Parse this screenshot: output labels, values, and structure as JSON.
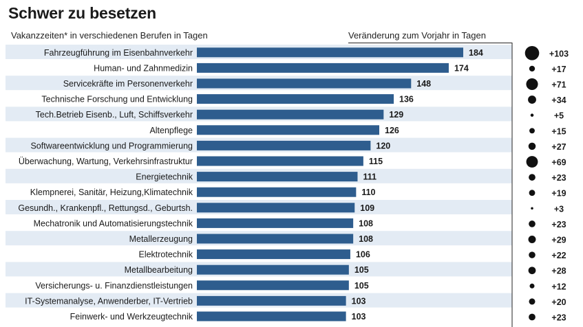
{
  "title": "Schwer zu besetzen",
  "subtitle": "Vakanzzeiten* in verschiedenen Berufen in Tagen",
  "change_header": "Veränderung zum Vorjahr in Tagen",
  "colors": {
    "bar": "#2e5d8e",
    "row_band": "#e3ebf4",
    "dot": "#111111",
    "text": "#1a1a1a"
  },
  "chart_data": {
    "type": "bar",
    "orientation": "horizontal",
    "categories": [
      "Fahrzeugführung im Eisenbahnverkehr",
      "Human- und Zahnmedizin",
      "Servicekräfte im Personenverkehr",
      "Technische Forschung und Entwicklung",
      "Tech.Betrieb Eisenb., Luft, Schiffsverkehr",
      "Altenpflege",
      "Softwareentwicklung und Programmierung",
      "Überwachung, Wartung, Verkehrsinfrastruktur",
      "Energietechnik",
      "Klempnerei, Sanitär,  Heizung,Klimatechnik",
      "Gesundh., Krankenpfl., Rettungsd., Geburtsh.",
      "Mechatronik und Automatisierungstechnik",
      "Metallerzeugung",
      "Elektrotechnik",
      "Metallbearbeitung",
      "Versicherungs- u. Finanzdienstleistungen",
      "IT-Systemanalyse, Anwenderber, IT-Vertrieb",
      "Feinwerk- und Werkzeugtechnik"
    ],
    "values": [
      184,
      174,
      148,
      136,
      129,
      126,
      120,
      115,
      111,
      110,
      109,
      108,
      108,
      106,
      105,
      105,
      103,
      103
    ],
    "change_labels": [
      "+103",
      "+17",
      "+71",
      "+34",
      "+5",
      "+15",
      "+27",
      "+69",
      "+23",
      "+19",
      "+3",
      "+23",
      "+29",
      "+22",
      "+28",
      "+12",
      "+20",
      "+23"
    ],
    "changes": [
      103,
      17,
      71,
      34,
      5,
      15,
      27,
      69,
      23,
      19,
      3,
      23,
      29,
      22,
      28,
      12,
      20,
      23
    ]
  }
}
